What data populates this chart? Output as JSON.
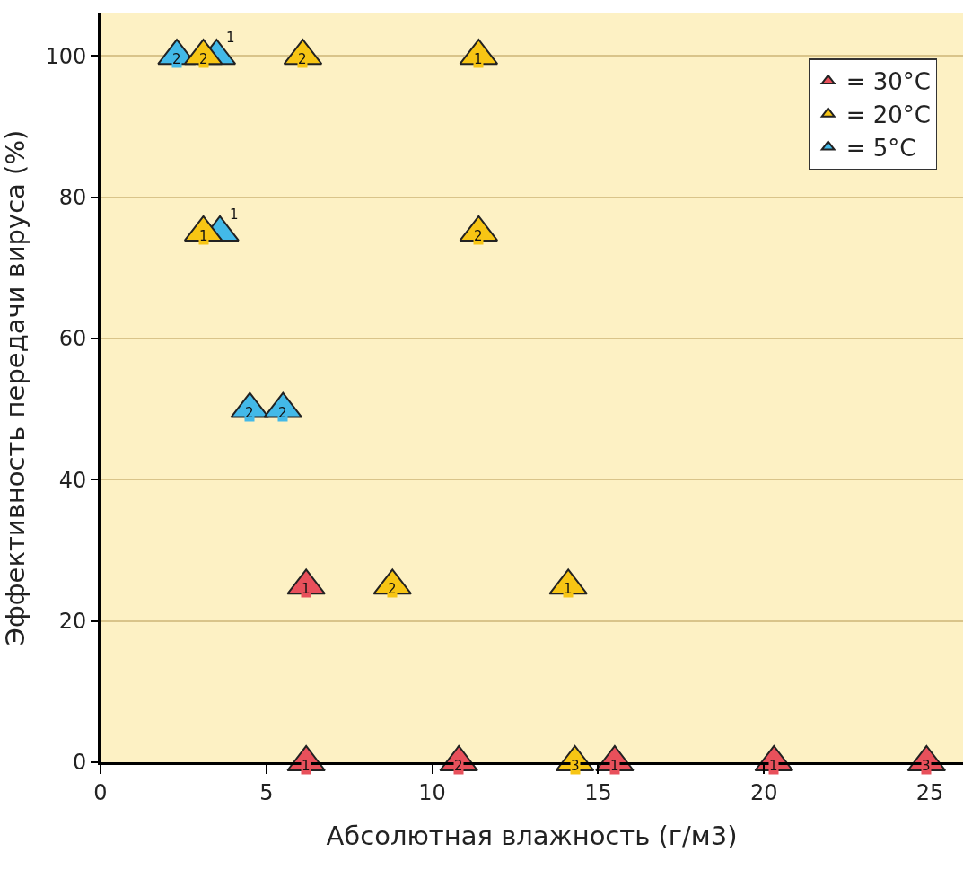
{
  "chart_data": {
    "type": "scatter",
    "xlabel": "Абсолютная влажность (г/м3)",
    "ylabel": "Эффективность передачи вируса (%)",
    "xlim": [
      0,
      26
    ],
    "ylim": [
      0,
      106
    ],
    "xticks": [
      0,
      5,
      10,
      15,
      20,
      25
    ],
    "yticks": [
      0,
      20,
      40,
      60,
      80,
      100
    ],
    "grid": "y",
    "legend": "top right",
    "marker": "triangle",
    "series": [
      {
        "name": "= 5°C",
        "color": "#43b9e8",
        "x": [
          2.3,
          3.5,
          3.6,
          4.5,
          5.5
        ],
        "values": [
          100,
          100,
          75,
          50,
          50
        ]
      },
      {
        "name": "= 20°C",
        "color": "#f7c514",
        "x": [
          3.1,
          6.1,
          11.4,
          3.1,
          11.4,
          8.8,
          14.1,
          14.3
        ],
        "values": [
          100,
          100,
          100,
          75,
          75,
          25,
          25,
          0
        ]
      },
      {
        "name": "= 30°C",
        "color": "#e8505b",
        "x": [
          6.2,
          6.2,
          10.8,
          15.5,
          20.3,
          24.9
        ],
        "values": [
          25,
          0,
          0,
          0,
          0,
          0
        ]
      }
    ],
    "annotations": [
      {
        "text": "2",
        "x": 2.3,
        "y": 100
      },
      {
        "text": "1",
        "x": 3.5,
        "y": 100
      },
      {
        "text": "1",
        "x": 3.6,
        "y": 75
      },
      {
        "text": "2",
        "x": 4.5,
        "y": 50
      },
      {
        "text": "2",
        "x": 5.5,
        "y": 50
      },
      {
        "text": "2",
        "x": 3.1,
        "y": 100
      },
      {
        "text": "2",
        "x": 6.1,
        "y": 100
      },
      {
        "text": "1",
        "x": 11.4,
        "y": 100
      },
      {
        "text": "1",
        "x": 3.1,
        "y": 75
      },
      {
        "text": "2",
        "x": 11.4,
        "y": 75
      },
      {
        "text": "2",
        "x": 8.8,
        "y": 25
      },
      {
        "text": "1",
        "x": 14.1,
        "y": 25
      },
      {
        "text": "3",
        "x": 14.3,
        "y": 0
      },
      {
        "text": "1",
        "x": 6.2,
        "y": 25
      },
      {
        "text": "1",
        "x": 6.2,
        "y": 0
      },
      {
        "text": "2",
        "x": 10.8,
        "y": 0
      },
      {
        "text": "1",
        "x": 15.5,
        "y": 0
      },
      {
        "text": "1",
        "x": 20.3,
        "y": 0
      },
      {
        "text": "3",
        "x": 24.9,
        "y": 0
      }
    ]
  }
}
